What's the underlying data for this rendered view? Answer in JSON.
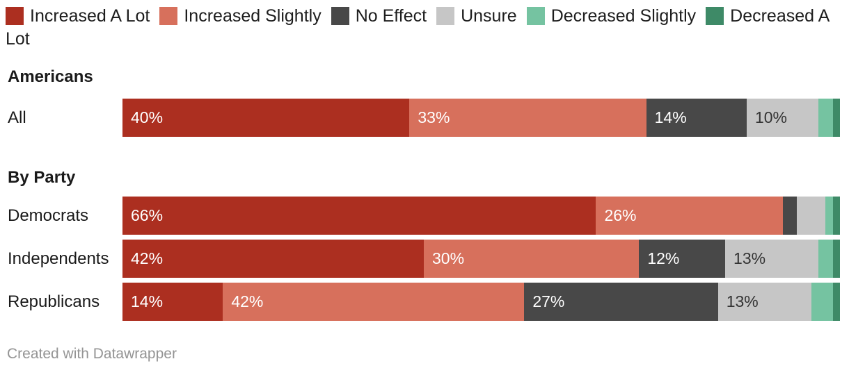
{
  "legend": {
    "items": [
      {
        "label": "Increased A Lot",
        "color": "#AC2F20",
        "value_label_color": "#FFFFFF"
      },
      {
        "label": "Increased Slightly",
        "color": "#D7705C",
        "value_label_color": "#FFFFFF"
      },
      {
        "label": "No Effect",
        "color": "#484848",
        "value_label_color": "#FFFFFF"
      },
      {
        "label": "Unsure",
        "color": "#C6C6C6",
        "value_label_color": "#333333"
      },
      {
        "label": "Decreased Slightly",
        "color": "#75C3A1",
        "value_label_color": "#333333"
      },
      {
        "label": "Decreased A Lot",
        "color": "#3E8A67",
        "value_label_color": "#FFFFFF"
      }
    ]
  },
  "chart_data": {
    "type": "bar",
    "stacked": true,
    "orientation": "horizontal",
    "unit": "%",
    "xlim": [
      0,
      100
    ],
    "grid": false,
    "legend_position": "top",
    "label_threshold_pct": 10,
    "series_names": [
      "Increased A Lot",
      "Increased Slightly",
      "No Effect",
      "Unsure",
      "Decreased Slightly",
      "Decreased A Lot"
    ],
    "sections": [
      {
        "header": "Americans",
        "rows": [
          {
            "label": "All",
            "values": [
              40,
              33,
              14,
              10,
              2,
              1
            ]
          }
        ]
      },
      {
        "header": "By Party",
        "rows": [
          {
            "label": "Democrats",
            "values": [
              66,
              26,
              2,
              4,
              1,
              1
            ]
          },
          {
            "label": "Independents",
            "values": [
              42,
              30,
              12,
              13,
              2,
              1
            ]
          },
          {
            "label": "Republicans",
            "values": [
              14,
              42,
              27,
              13,
              3,
              1
            ]
          }
        ]
      }
    ]
  },
  "footer": {
    "credit": "Created with Datawrapper"
  }
}
